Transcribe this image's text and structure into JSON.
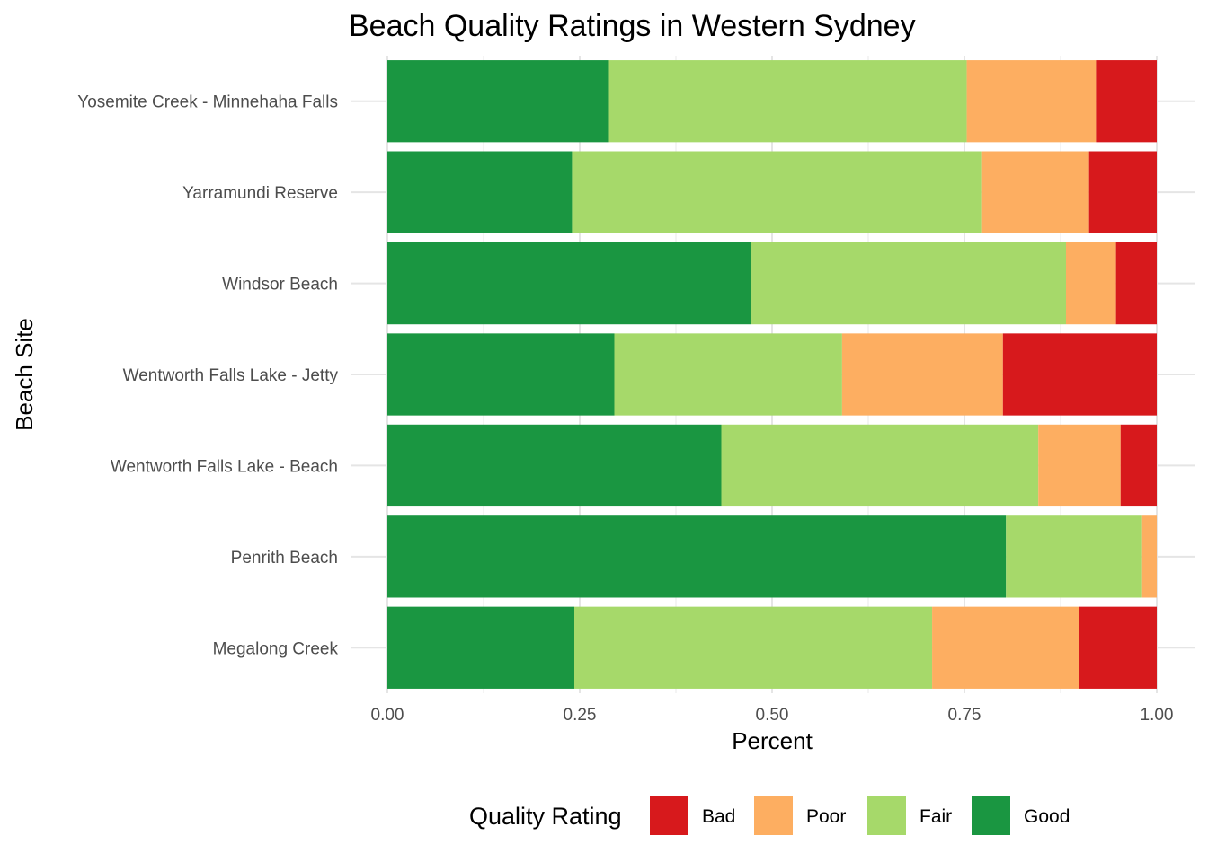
{
  "chart_data": {
    "type": "bar",
    "orientation": "horizontal",
    "stacked": true,
    "title": "Beach Quality Ratings in Western Sydney",
    "xlabel": "Percent",
    "ylabel": "Beach Site",
    "xlim": [
      0,
      1
    ],
    "x_ticks": [
      "0.00",
      "0.25",
      "0.50",
      "0.75",
      "1.00"
    ],
    "x_tick_values": [
      0,
      0.25,
      0.5,
      0.75,
      1.0
    ],
    "categories": [
      "Yosemite Creek - Minnehaha Falls",
      "Yarramundi Reserve",
      "Windsor Beach",
      "Wentworth Falls Lake - Jetty",
      "Wentworth Falls Lake - Beach",
      "Penrith Beach",
      "Megalong Creek"
    ],
    "series": [
      {
        "name": "Good",
        "color": "#1a9641",
        "values": [
          0.288,
          0.24,
          0.473,
          0.295,
          0.434,
          0.804,
          0.243
        ]
      },
      {
        "name": "Fair",
        "color": "#a6d96a",
        "values": [
          0.465,
          0.533,
          0.409,
          0.296,
          0.412,
          0.177,
          0.465
        ]
      },
      {
        "name": "Poor",
        "color": "#fdae61",
        "values": [
          0.168,
          0.139,
          0.065,
          0.209,
          0.107,
          0.019,
          0.191
        ]
      },
      {
        "name": "Bad",
        "color": "#d7191c",
        "values": [
          0.079,
          0.088,
          0.053,
          0.2,
          0.047,
          0.0,
          0.101
        ]
      }
    ],
    "legend": {
      "title": "Quality Rating",
      "position": "bottom",
      "items": [
        {
          "label": "Bad",
          "color": "#d7191c"
        },
        {
          "label": "Poor",
          "color": "#fdae61"
        },
        {
          "label": "Fair",
          "color": "#a6d96a"
        },
        {
          "label": "Good",
          "color": "#1a9641"
        }
      ]
    },
    "grid": true
  }
}
